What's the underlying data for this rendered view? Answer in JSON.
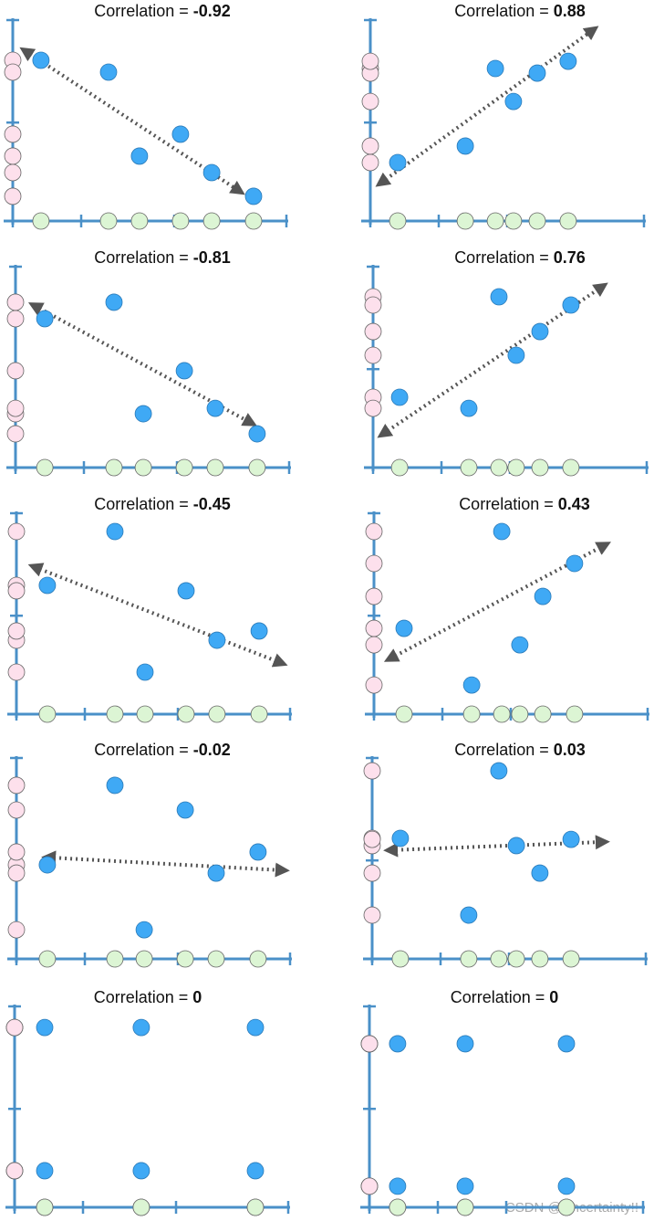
{
  "chart_data": [
    {
      "type": "scatter",
      "title": "Correlation =",
      "correlation": -0.92,
      "color": "#3fa9f5",
      "x": [
        1.03,
        3.5,
        4.63,
        6.13,
        7.27,
        8.8
      ],
      "y": [
        8.0,
        7.41,
        3.23,
        4.32,
        2.41,
        1.23
      ],
      "xlim": [
        0,
        10
      ],
      "ylim": [
        0,
        10
      ],
      "xticks": [
        0,
        2.5,
        5.9,
        10
      ],
      "yticks": [
        0,
        4.9,
        10
      ],
      "trend_line": {
        "x": [
          0.47,
          8.27
        ],
        "y": [
          8.45,
          1.5
        ]
      }
    },
    {
      "type": "scatter",
      "title": "Correlation =",
      "correlation": 0.88,
      "color": "#3fa9f5",
      "x": [
        1.0,
        3.47,
        4.57,
        5.23,
        6.1,
        7.23
      ],
      "y": [
        2.91,
        3.73,
        7.59,
        5.95,
        7.36,
        7.95
      ],
      "xlim": [
        0,
        10
      ],
      "ylim": [
        0,
        10
      ],
      "xticks": [
        0,
        2.5,
        5.0,
        10
      ],
      "yticks": [
        0,
        4.9,
        10
      ],
      "trend_line": {
        "x": [
          0.4,
          8.13
        ],
        "y": [
          1.91,
          9.5
        ]
      }
    },
    {
      "type": "scatter",
      "title": "Correlation =",
      "correlation": -0.81,
      "color": "#3fa9f5",
      "x": [
        1.07,
        3.6,
        4.67,
        6.17,
        7.3,
        8.83
      ],
      "y": [
        7.41,
        8.23,
        2.68,
        4.82,
        2.95,
        1.68
      ],
      "xlim": [
        0,
        10
      ],
      "ylim": [
        0,
        10
      ],
      "xticks": [
        0,
        2.5,
        5.9,
        10
      ],
      "yticks": [
        0,
        4.9,
        10
      ],
      "trend_line": {
        "x": [
          0.7,
          8.6
        ],
        "y": [
          8.05,
          2.23
        ]
      }
    },
    {
      "type": "scatter",
      "title": "Correlation =",
      "correlation": 0.76,
      "color": "#3fa9f5",
      "x": [
        0.97,
        3.5,
        4.6,
        5.23,
        6.1,
        7.23
      ],
      "y": [
        3.5,
        2.95,
        8.5,
        5.59,
        6.77,
        8.09
      ],
      "xlim": [
        0,
        10
      ],
      "ylim": [
        0,
        10
      ],
      "xticks": [
        0,
        2.5,
        5.0,
        10
      ],
      "yticks": [
        0,
        4.9,
        10
      ],
      "trend_line": {
        "x": [
          0.37,
          8.37
        ],
        "y": [
          1.68,
          9.0
        ]
      }
    },
    {
      "type": "scatter",
      "title": "Correlation =",
      "correlation": -0.45,
      "color": "#3fa9f5",
      "x": [
        1.13,
        3.6,
        4.7,
        6.2,
        7.33,
        8.87
      ],
      "y": [
        6.41,
        9.09,
        2.09,
        6.14,
        3.68,
        4.14
      ],
      "xlim": [
        0,
        10
      ],
      "ylim": [
        0,
        10
      ],
      "xticks": [
        0,
        2.5,
        5.9,
        10
      ],
      "yticks": [
        0,
        4.9,
        10
      ],
      "trend_line": {
        "x": [
          0.67,
          9.67
        ],
        "y": [
          7.32,
          2.55
        ]
      }
    },
    {
      "type": "scatter",
      "title": "Correlation =",
      "correlation": 0.43,
      "color": "#3fa9f5",
      "x": [
        1.1,
        3.57,
        4.67,
        5.33,
        6.17,
        7.33
      ],
      "y": [
        4.27,
        1.45,
        9.09,
        3.45,
        5.86,
        7.5
      ],
      "xlim": [
        0,
        10
      ],
      "ylim": [
        0,
        10
      ],
      "xticks": [
        0,
        2.5,
        5.0,
        10
      ],
      "yticks": [
        0,
        4.9,
        10
      ],
      "trend_line": {
        "x": [
          0.6,
          8.43
        ],
        "y": [
          2.77,
          8.41
        ]
      }
    },
    {
      "type": "scatter",
      "title": "Correlation =",
      "correlation": -0.02,
      "color": "#3fa9f5",
      "x": [
        1.13,
        3.6,
        4.67,
        6.17,
        7.3,
        8.83
      ],
      "y": [
        4.68,
        8.64,
        1.45,
        7.41,
        4.27,
        5.32
      ],
      "xlim": [
        0,
        10
      ],
      "ylim": [
        0,
        10
      ],
      "xticks": [
        0,
        2.5,
        5.9,
        10
      ],
      "yticks": [
        0,
        4.9,
        10
      ],
      "trend_line": {
        "x": [
          1.17,
          9.73
        ],
        "y": [
          5.05,
          4.41
        ]
      }
    },
    {
      "type": "scatter",
      "title": "Correlation =",
      "correlation": 0.03,
      "color": "#3fa9f5",
      "x": [
        1.03,
        3.53,
        4.63,
        5.27,
        6.13,
        7.27
      ],
      "y": [
        6.0,
        2.18,
        9.36,
        5.64,
        4.27,
        5.95
      ],
      "xlim": [
        0,
        10
      ],
      "ylim": [
        0,
        10
      ],
      "xticks": [
        0,
        2.5,
        5.0,
        10
      ],
      "yticks": [
        0,
        4.9,
        10
      ],
      "trend_line": {
        "x": [
          0.67,
          8.43
        ],
        "y": [
          5.41,
          5.82
        ]
      }
    },
    {
      "type": "scatter",
      "title": "Correlation =",
      "correlation": 0,
      "color": "#3fa9f5",
      "x": [
        1.1,
        4.63,
        8.8,
        1.1,
        4.63,
        8.8
      ],
      "y": [
        8.95,
        8.95,
        8.95,
        1.82,
        1.82,
        1.82
      ],
      "xlim": [
        0,
        10
      ],
      "ylim": [
        0,
        10
      ],
      "xticks": [
        0,
        2.5,
        5.9,
        10
      ],
      "yticks": [
        0,
        4.9,
        10
      ]
    },
    {
      "type": "scatter",
      "title": "Correlation =",
      "correlation": 0,
      "color": "#3fa9f5",
      "x": [
        1.03,
        3.5,
        7.2,
        1.03,
        3.5,
        7.2
      ],
      "y": [
        8.14,
        8.14,
        8.14,
        1.05,
        1.05,
        1.05
      ],
      "xlim": [
        0,
        10
      ],
      "ylim": [
        0,
        10
      ],
      "xticks": [
        0,
        2.5,
        5.0,
        10
      ],
      "yticks": [
        0,
        4.9,
        10
      ]
    }
  ],
  "watermark": "CSDN @Uncertainty!!"
}
